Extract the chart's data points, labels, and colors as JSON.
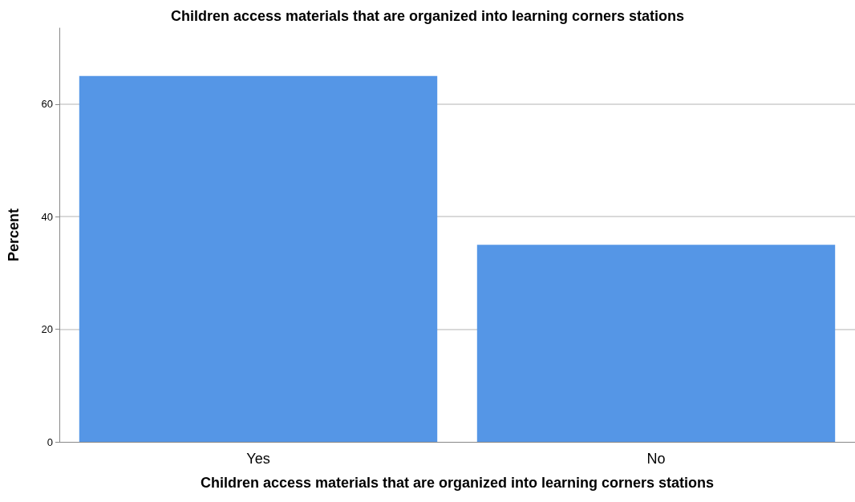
{
  "chart_data": {
    "type": "bar",
    "title": "Children access materials that are organized into learning corners stations",
    "xlabel": "Children access materials that are organized into learning corners stations",
    "ylabel": "Percent",
    "categories": [
      "Yes",
      "No"
    ],
    "values": [
      65,
      35
    ],
    "color": "#5596e6",
    "ylim": [
      0,
      73.5
    ],
    "yticks": [
      0,
      20,
      40,
      60
    ],
    "grid": "y"
  }
}
